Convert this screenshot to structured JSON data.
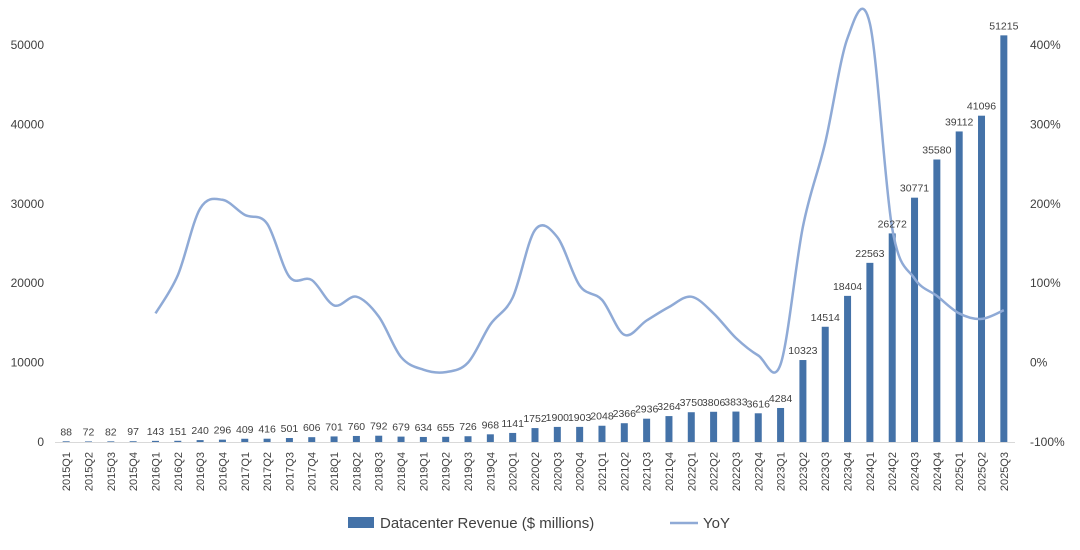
{
  "chart_data": {
    "type": "bar",
    "categories": [
      "2015Q1",
      "2015Q2",
      "2015Q3",
      "2015Q4",
      "2016Q1",
      "2016Q2",
      "2016Q3",
      "2016Q4",
      "2017Q1",
      "2017Q2",
      "2017Q3",
      "2017Q4",
      "2018Q1",
      "2018Q2",
      "2018Q3",
      "2018Q4",
      "2019Q1",
      "2019Q2",
      "2019Q3",
      "2019Q4",
      "2020Q1",
      "2020Q2",
      "2020Q3",
      "2020Q4",
      "2021Q1",
      "2021Q2",
      "2021Q3",
      "2021Q4",
      "2022Q1",
      "2022Q2",
      "2022Q3",
      "2022Q4",
      "2023Q1",
      "2023Q2",
      "2023Q3",
      "2023Q4",
      "2024Q1",
      "2024Q2",
      "2024Q3",
      "2024Q4",
      "2025Q1",
      "2025Q2",
      "2025Q3"
    ],
    "series": [
      {
        "name": "Datacenter Revenue ($ millions)",
        "type": "bar",
        "axis": "left",
        "color": "#4472a8",
        "values": [
          88,
          72,
          82,
          97,
          143,
          151,
          240,
          296,
          409,
          416,
          501,
          606,
          701,
          760,
          792,
          679,
          634,
          655,
          726,
          968,
          1141,
          1752,
          1900,
          1903,
          2048,
          2366,
          2936,
          3264,
          3750,
          3806,
          3833,
          3616,
          4284,
          10323,
          14514,
          18404,
          22563,
          26272,
          30771,
          35580,
          39112,
          41096,
          51215
        ]
      },
      {
        "name": "YoY",
        "type": "line",
        "axis": "right",
        "color": "#8faad6",
        "values": [
          null,
          null,
          null,
          null,
          62,
          110,
          194,
          205,
          186,
          175,
          108,
          104,
          72,
          83,
          58,
          7,
          -9,
          -12,
          0,
          48,
          82,
          167,
          158,
          97,
          79,
          35,
          53,
          70,
          83,
          62,
          31,
          9,
          -2,
          171,
          277,
          409,
          427,
          169,
          106,
          84,
          62,
          55,
          66
        ]
      }
    ],
    "yleft": {
      "ticks": [
        "0",
        "10000",
        "20000",
        "30000",
        "40000",
        "50000"
      ],
      "lim": [
        0,
        50000
      ]
    },
    "yright": {
      "ticks": [
        "-100%",
        "0%",
        "100%",
        "200%",
        "300%",
        "400%"
      ],
      "lim": [
        -100,
        400
      ]
    },
    "grid": false,
    "legend": "bottom"
  }
}
